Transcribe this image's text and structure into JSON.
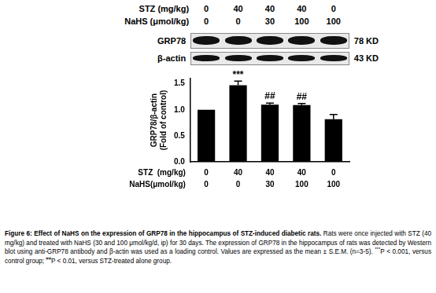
{
  "header": [
    {
      "label": "STZ (mg/kg)",
      "values": [
        0,
        40,
        40,
        40,
        0
      ]
    },
    {
      "label": "NaHS (μmol/kg)",
      "values": [
        0,
        0,
        30,
        100,
        100
      ]
    }
  ],
  "blot": [
    {
      "label": "GRP78",
      "size": "78 KD"
    },
    {
      "label": "β-actin",
      "size": "43 KD"
    }
  ],
  "chart_data": {
    "type": "bar",
    "categories": [
      null,
      null,
      null,
      null,
      null
    ],
    "values": [
      1.0,
      1.47,
      1.1,
      1.09,
      0.82
    ],
    "errors": [
      0,
      0.08,
      0.03,
      0.03,
      0.09
    ],
    "color": "#000000",
    "ylabel": [
      "GRP78/β-actin",
      "(Fold of control)"
    ],
    "ylim": [
      0,
      1.6
    ],
    "yticks": [
      {
        "value": 0,
        "label": "0.0"
      },
      0.5,
      {
        "value": 1.0,
        "label": "1.0"
      },
      1.5
    ],
    "grid": false,
    "annotations": [
      {
        "index": 1,
        "text": "***"
      },
      {
        "index": 2,
        "text": "##"
      },
      {
        "index": 3,
        "text": "##"
      }
    ],
    "x_rows": [
      {
        "label": "STZ  (mg/kg)",
        "values": [
          0,
          40,
          40,
          40,
          0
        ]
      },
      {
        "label": "NaHS(μmol/kg)",
        "values": [
          0,
          0,
          30,
          100,
          100
        ]
      }
    ]
  },
  "caption": {
    "title": "Figure 6: Effect of NaHS on the expression of GRP78 in the hippocampus of STZ-induced diabetic rats.",
    "body": [
      {
        "text": "Rats were once injected with STZ (40 mg/kg) and treated with NaHS (30 and 100 μmol/kg/d, ip) for 30 days. The expression of GRP78 in the hippocampus of rats was detected by Western blot using anti-GRP78 antibody and β-actin was used as a loading control. Values are expressed as the mean ± S.E.M. (n=3-5). "
      },
      {
        "text": "***",
        "sup": true
      },
      {
        "text": "P < 0.001, versus control group; "
      },
      {
        "text": "##",
        "sup": true
      },
      {
        "text": "P < 0.01, versus STZ-treated alone group."
      }
    ]
  }
}
